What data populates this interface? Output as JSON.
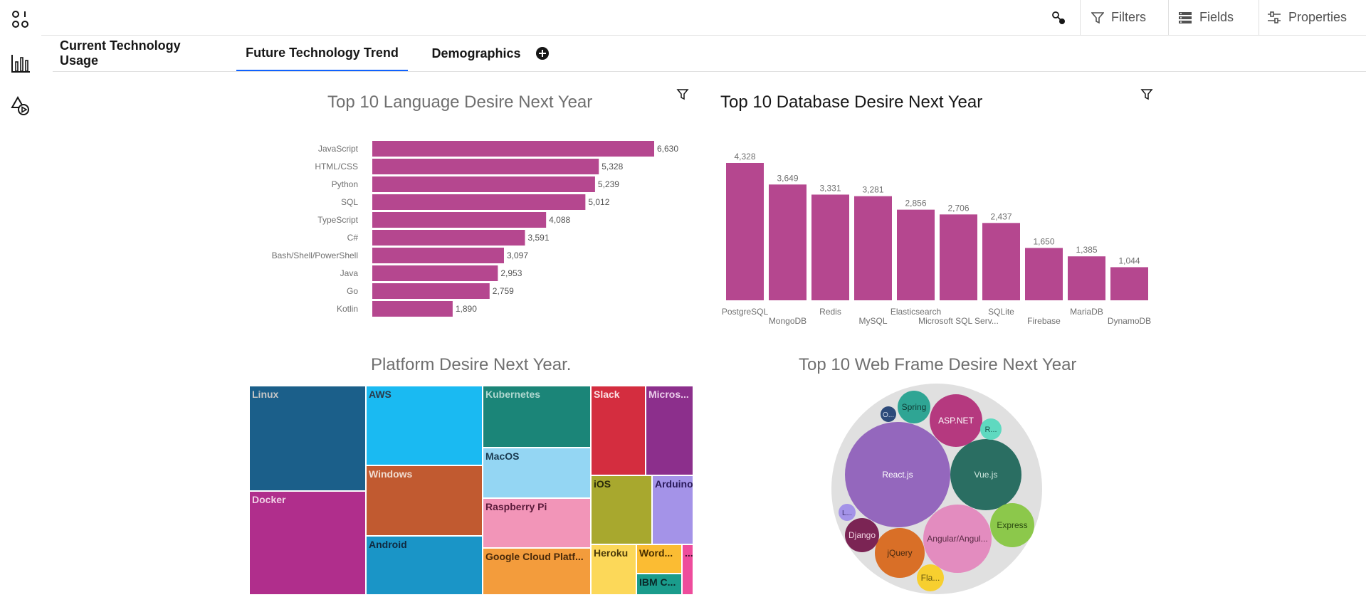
{
  "toolbar": {
    "filters_label": "Filters",
    "fields_label": "Fields",
    "properties_label": "Properties"
  },
  "rail": {
    "items": [
      {
        "icon": "data-icon"
      },
      {
        "icon": "bar-chart-icon"
      },
      {
        "icon": "shapes-play-icon"
      }
    ]
  },
  "tabs": [
    {
      "label": "Current Technology Usage",
      "active": false
    },
    {
      "label": "Future Technology Trend",
      "active": true
    },
    {
      "label": "Demographics",
      "active": false
    }
  ],
  "colors": {
    "bar": "#b5478f",
    "accent": "#0f62fe",
    "bubble_bg": "#e0e0e0"
  },
  "chart_data": [
    {
      "type": "bar",
      "orientation": "horizontal",
      "title": "Top 10 Language Desire Next Year",
      "categories": [
        "JavaScript",
        "HTML/CSS",
        "Python",
        "SQL",
        "TypeScript",
        "C#",
        "Bash/Shell/PowerShell",
        "Java",
        "Go",
        "Kotlin"
      ],
      "values": [
        6630,
        5328,
        5239,
        5012,
        4088,
        3591,
        3097,
        2953,
        2759,
        1890
      ],
      "value_labels": [
        "6,630",
        "5,328",
        "5,239",
        "5,012",
        "4,088",
        "3,591",
        "3,097",
        "2,953",
        "2,759",
        "1,890"
      ],
      "xlim": [
        0,
        6630
      ],
      "grid": false
    },
    {
      "type": "bar",
      "orientation": "vertical",
      "title": "Top 10 Database Desire Next Year",
      "categories": [
        "PostgreSQL",
        "MongoDB",
        "Redis",
        "MySQL",
        "Elasticsearch",
        "Microsoft SQL Serv...",
        "SQLite",
        "Firebase",
        "MariaDB",
        "DynamoDB"
      ],
      "values": [
        4328,
        3649,
        3331,
        3281,
        2856,
        2706,
        2437,
        1650,
        1385,
        1044
      ],
      "value_labels": [
        "4,328",
        "3,649",
        "3,331",
        "3,281",
        "2,856",
        "2,706",
        "2,437",
        "1,650",
        "1,385",
        "1,044"
      ],
      "ylim": [
        0,
        4328
      ],
      "grid": false
    },
    {
      "type": "treemap",
      "title": "Platform Desire Next Year.",
      "cells": [
        {
          "label": "Linux",
          "color": "#1b5f8a",
          "text": "#c6c6c6"
        },
        {
          "label": "Docker",
          "color": "#b02e8c",
          "text": "#f0d0e6"
        },
        {
          "label": "AWS",
          "color": "#1abaf2",
          "text": "#2a3a4a"
        },
        {
          "label": "Windows",
          "color": "#c15a30",
          "text": "#f0dcd0"
        },
        {
          "label": "Android",
          "color": "#1a95c7",
          "text": "#102a40"
        },
        {
          "label": "Kubernetes",
          "color": "#1b8578",
          "text": "#b0d8d0"
        },
        {
          "label": "MacOS",
          "color": "#94d6f3",
          "text": "#1a3a50"
        },
        {
          "label": "Raspberry Pi",
          "color": "#f295b8",
          "text": "#5a1a3a"
        },
        {
          "label": "Google Cloud Platf...",
          "color": "#f39c3c",
          "text": "#4a2a0a"
        },
        {
          "label": "Slack",
          "color": "#d42d3f",
          "text": "#fbe0e4"
        },
        {
          "label": "Micros...",
          "color": "#8c2f8c",
          "text": "#ecd0ec"
        },
        {
          "label": "iOS",
          "color": "#a8a82e",
          "text": "#2a2a0a"
        },
        {
          "label": "Arduino",
          "color": "#a493e8",
          "text": "#2a1a5a"
        },
        {
          "label": "Heroku",
          "color": "#fcd859",
          "text": "#4a3a0a"
        },
        {
          "label": "Word...",
          "color": "#fbbc33",
          "text": "#4a3000"
        },
        {
          "label": "IBM C...",
          "color": "#1a9c8c",
          "text": "#0a2a2a"
        },
        {
          "label": "...",
          "color": "#ee4c9c",
          "text": "#3a0a2a"
        }
      ]
    },
    {
      "type": "bubble",
      "title": "Top 10 Web Frame Desire Next Year",
      "bubbles": [
        {
          "label": "React.js",
          "color": "#9467bd",
          "text": "#ffffff"
        },
        {
          "label": "Vue.js",
          "color": "#2a6e62",
          "text": "#d0e8e0"
        },
        {
          "label": "Angular/Angul...",
          "color": "#e38cbf",
          "text": "#5a2a45"
        },
        {
          "label": "ASP.NET",
          "color": "#b5397f",
          "text": "#ffffff"
        },
        {
          "label": "jQuery",
          "color": "#d96f27",
          "text": "#4a2a10"
        },
        {
          "label": "Express",
          "color": "#8cc84b",
          "text": "#2a4a10"
        },
        {
          "label": "Spring",
          "color": "#2fa594",
          "text": "#0f3a34"
        },
        {
          "label": "Django",
          "color": "#7b2454",
          "text": "#f0d0e0"
        },
        {
          "label": "Fla...",
          "color": "#f7cf2f",
          "text": "#6a5a10"
        },
        {
          "label": "R...",
          "color": "#5fd9c0",
          "text": "#1a5a50"
        },
        {
          "label": "O...",
          "color": "#2d4a7a",
          "text": "#d0d8e8"
        },
        {
          "label": "L...",
          "color": "#a493e8",
          "text": "#3a2a6a"
        }
      ]
    }
  ]
}
